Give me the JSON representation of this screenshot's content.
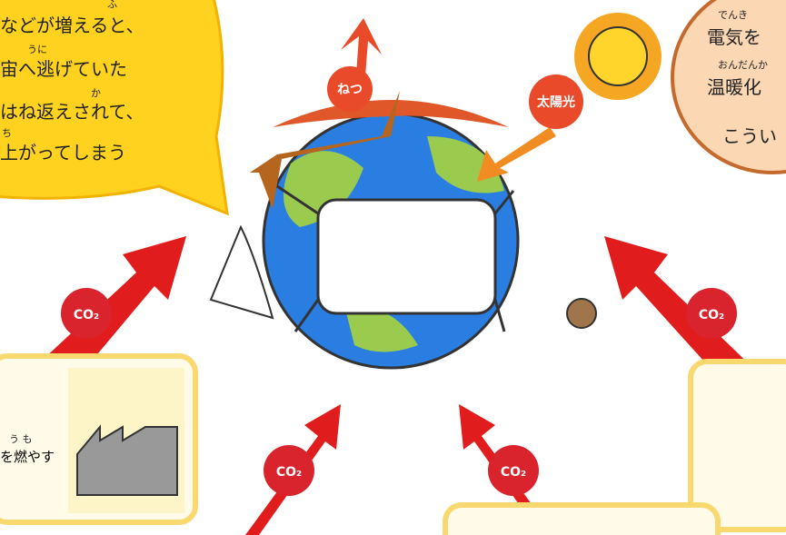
{
  "left_bubble": {
    "lines": [
      "ふ",
      "などが増えると、",
      "うに",
      "宙へ逃げていた",
      "か",
      "はね返えされて、",
      "ち",
      "上がってしまう"
    ]
  },
  "right_bubble": {
    "lines": [
      "でんき",
      "電気を",
      "おんだんか",
      "温暖化",
      "こうい"
    ]
  },
  "illustration": {
    "heat_label": "ねつ",
    "sunlight_label": "太陽光",
    "co2_labels": [
      "CO₂",
      "CO₂",
      "CO₂",
      "CO₂"
    ]
  },
  "left_box": {
    "lines": [
      "う も",
      "を燃やす"
    ]
  }
}
